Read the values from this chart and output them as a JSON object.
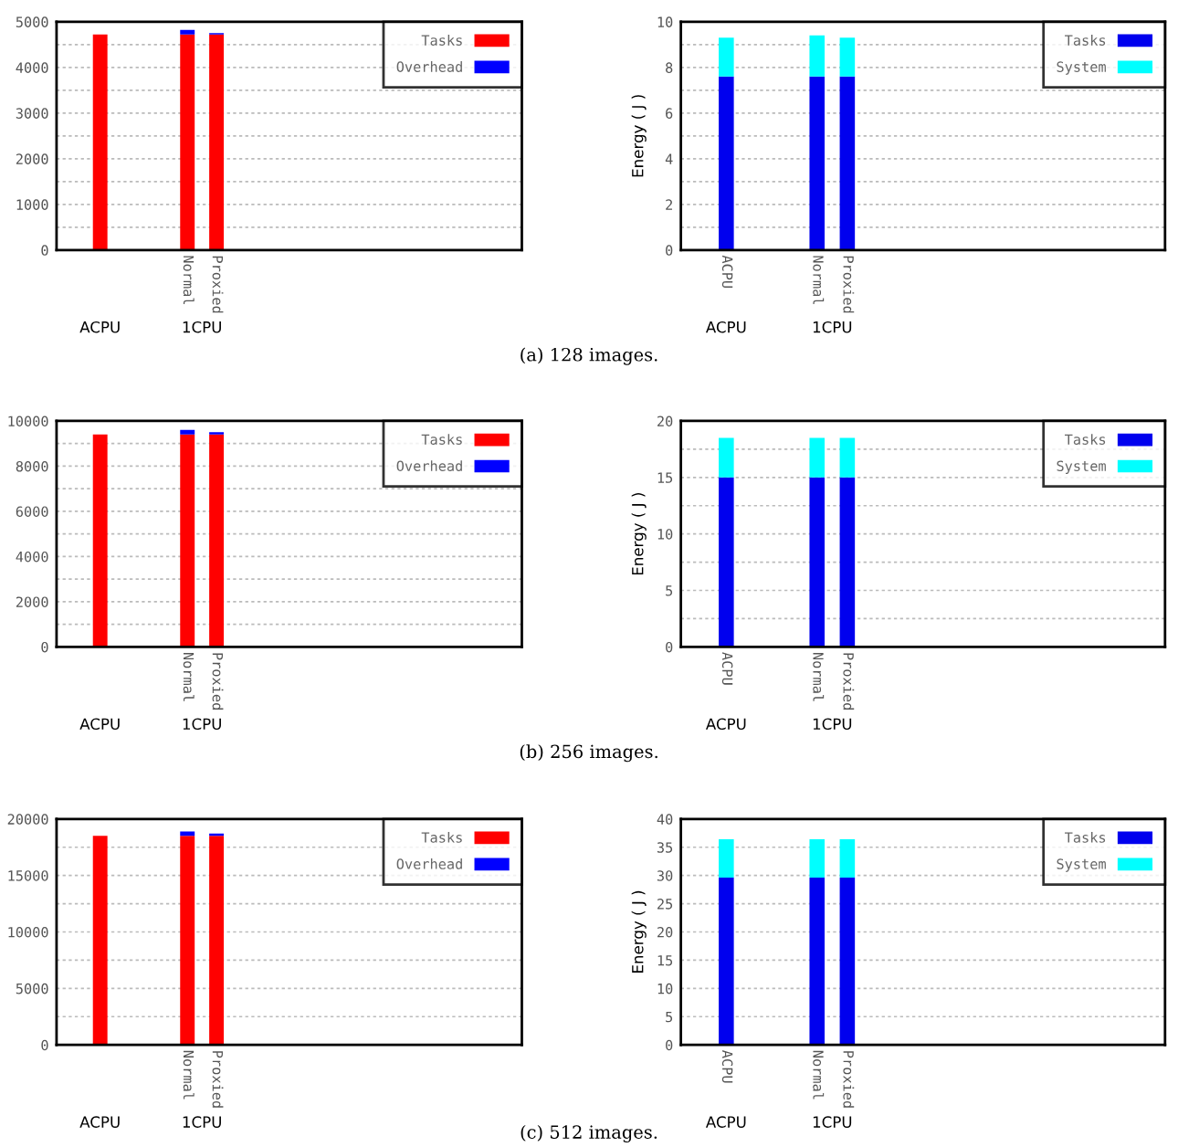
{
  "chart_data": [
    {
      "type": "bar",
      "stacked": true,
      "categories": [
        null,
        null,
        null,
        null,
        "Normal",
        "Proxied",
        null,
        null,
        null,
        null,
        null,
        null,
        null,
        null,
        null,
        null
      ],
      "series": [
        {
          "name": "Tasks",
          "color": "#ff0000",
          "values": [
            null,
            4720,
            null,
            null,
            4720,
            4720,
            null,
            null,
            null,
            null,
            null,
            null,
            null,
            null,
            null,
            null
          ]
        },
        {
          "name": "Overhead",
          "color": "#0000ff",
          "values": [
            null,
            0,
            null,
            null,
            100,
            30,
            null,
            null,
            null,
            null,
            null,
            null,
            null,
            null,
            null,
            null
          ]
        }
      ],
      "ylim": [
        0,
        5000
      ],
      "yticks": [
        0,
        {
          "value": 500,
          "label": null
        },
        1000,
        {
          "value": 1500,
          "label": null
        },
        2000,
        {
          "value": 2500,
          "label": null
        },
        3000,
        {
          "value": 3500,
          "label": null
        },
        4000,
        {
          "value": 4500,
          "label": null
        },
        5000
      ],
      "grid": "y",
      "legend": "top right",
      "annotations": [
        "ACPU",
        "1CPU",
        "(a) 128 images."
      ]
    },
    {
      "type": "bar",
      "stacked": true,
      "categories": [
        null,
        "ACPU",
        null,
        null,
        "Normal",
        "Proxied",
        null,
        null,
        null,
        null,
        null,
        null,
        null,
        null,
        null,
        null
      ],
      "series": [
        {
          "name": "Tasks",
          "color": "#0000ee",
          "values": [
            null,
            7.6,
            null,
            null,
            7.6,
            7.6,
            null,
            null,
            null,
            null,
            null,
            null,
            null,
            null,
            null,
            null
          ]
        },
        {
          "name": "System",
          "color": "#00ffff",
          "values": [
            null,
            1.7,
            null,
            null,
            1.8,
            1.7,
            null,
            null,
            null,
            null,
            null,
            null,
            null,
            null,
            null,
            null
          ]
        }
      ],
      "ylabel": "Energy ( J )",
      "ylim": [
        0,
        10
      ],
      "yticks": [
        0,
        {
          "value": 1,
          "label": null
        },
        2,
        {
          "value": 3,
          "label": null
        },
        4,
        {
          "value": 5,
          "label": null
        },
        6,
        {
          "value": 7,
          "label": null
        },
        8,
        {
          "value": 9,
          "label": null
        },
        10
      ],
      "grid": "y",
      "legend": "top right",
      "annotations": [
        "ACPU",
        "1CPU"
      ]
    },
    {
      "type": "bar",
      "stacked": true,
      "categories": [
        null,
        null,
        null,
        null,
        "Normal",
        "Proxied",
        null,
        null,
        null,
        null,
        null,
        null,
        null,
        null,
        null,
        null
      ],
      "series": [
        {
          "name": "Tasks",
          "color": "#ff0000",
          "values": [
            null,
            9400,
            null,
            null,
            9400,
            9400,
            null,
            null,
            null,
            null,
            null,
            null,
            null,
            null,
            null,
            null
          ]
        },
        {
          "name": "Overhead",
          "color": "#0000ff",
          "values": [
            null,
            0,
            null,
            null,
            200,
            100,
            null,
            null,
            null,
            null,
            null,
            null,
            null,
            null,
            null,
            null
          ]
        }
      ],
      "ylim": [
        0,
        10000
      ],
      "yticks": [
        0,
        {
          "value": 1000,
          "label": null
        },
        2000,
        {
          "value": 3000,
          "label": null
        },
        4000,
        {
          "value": 5000,
          "label": null
        },
        6000,
        {
          "value": 7000,
          "label": null
        },
        8000,
        {
          "value": 9000,
          "label": null
        },
        10000
      ],
      "grid": "y",
      "legend": "top right",
      "annotations": [
        "ACPU",
        "1CPU",
        "(b) 256 images."
      ]
    },
    {
      "type": "bar",
      "stacked": true,
      "categories": [
        null,
        "ACPU",
        null,
        null,
        "Normal",
        "Proxied",
        null,
        null,
        null,
        null,
        null,
        null,
        null,
        null,
        null,
        null
      ],
      "series": [
        {
          "name": "Tasks",
          "color": "#0000ee",
          "values": [
            null,
            15,
            null,
            null,
            15,
            15,
            null,
            null,
            null,
            null,
            null,
            null,
            null,
            null,
            null,
            null
          ]
        },
        {
          "name": "System",
          "color": "#00ffff",
          "values": [
            null,
            3.5,
            null,
            null,
            3.5,
            3.5,
            null,
            null,
            null,
            null,
            null,
            null,
            null,
            null,
            null,
            null
          ]
        }
      ],
      "ylabel": "Energy ( J )",
      "ylim": [
        0,
        20
      ],
      "yticks": [
        0,
        {
          "value": 2.5,
          "label": null
        },
        5,
        {
          "value": 7.5,
          "label": null
        },
        10,
        {
          "value": 12.5,
          "label": null
        },
        15,
        {
          "value": 17.5,
          "label": null
        },
        20
      ],
      "grid": "y",
      "legend": "top right",
      "annotations": [
        "ACPU",
        "1CPU"
      ]
    },
    {
      "type": "bar",
      "stacked": true,
      "categories": [
        null,
        null,
        null,
        null,
        "Normal",
        "Proxied",
        null,
        null,
        null,
        null,
        null,
        null,
        null,
        null,
        null,
        null
      ],
      "series": [
        {
          "name": "Tasks",
          "color": "#ff0000",
          "values": [
            null,
            18500,
            null,
            null,
            18500,
            18500,
            null,
            null,
            null,
            null,
            null,
            null,
            null,
            null,
            null,
            null
          ]
        },
        {
          "name": "Overhead",
          "color": "#0000ff",
          "values": [
            null,
            0,
            null,
            null,
            400,
            200,
            null,
            null,
            null,
            null,
            null,
            null,
            null,
            null,
            null,
            null
          ]
        }
      ],
      "ylim": [
        0,
        20000
      ],
      "yticks": [
        0,
        {
          "value": 2500,
          "label": null
        },
        5000,
        {
          "value": 7500,
          "label": null
        },
        10000,
        {
          "value": 12500,
          "label": null
        },
        15000,
        {
          "value": 17500,
          "label": null
        },
        20000
      ],
      "grid": "y",
      "legend": "top right",
      "annotations": [
        "ACPU",
        "1CPU",
        "(c) 512 images."
      ]
    },
    {
      "type": "bar",
      "stacked": true,
      "categories": [
        null,
        "ACPU",
        null,
        null,
        "Normal",
        "Proxied",
        null,
        null,
        null,
        null,
        null,
        null,
        null,
        null,
        null,
        null
      ],
      "series": [
        {
          "name": "Tasks",
          "color": "#0000ee",
          "values": [
            null,
            29.6,
            null,
            null,
            29.6,
            29.6,
            null,
            null,
            null,
            null,
            null,
            null,
            null,
            null,
            null,
            null
          ]
        },
        {
          "name": "System",
          "color": "#00ffff",
          "values": [
            null,
            6.8,
            null,
            null,
            6.8,
            6.8,
            null,
            null,
            null,
            null,
            null,
            null,
            null,
            null,
            null,
            null
          ]
        }
      ],
      "ylabel": "Energy ( J )",
      "ylim": [
        0,
        40
      ],
      "yticks": [
        0,
        5,
        10,
        15,
        20,
        25,
        30,
        35,
        40
      ],
      "grid": "y",
      "legend": "top right",
      "annotations": [
        "ACPU",
        "1CPU"
      ]
    }
  ]
}
